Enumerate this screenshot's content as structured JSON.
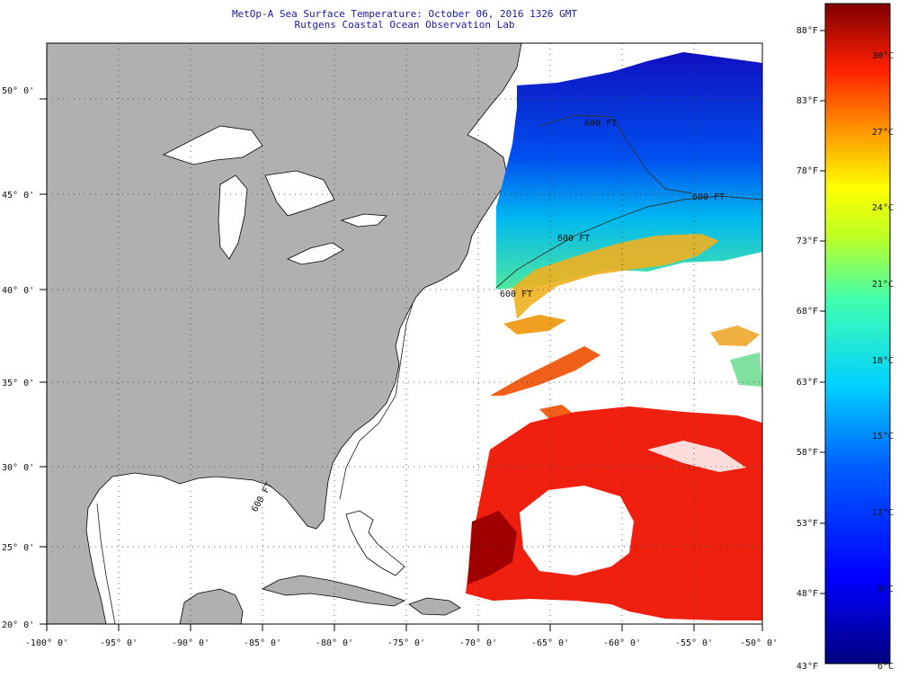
{
  "header": {
    "title": "MetOp-A Sea Surface Temperature:  October 06, 2016 1326 GMT",
    "subtitle": "Rutgens Coastal Ocean Observation Lab"
  },
  "map": {
    "lon_labels": [
      "-100° 0'",
      "-95° 0'",
      "-90° 0'",
      "-85° 0'",
      "-80° 0'",
      "-75° 0'",
      "-70° 0'",
      "-65° 0'",
      "-60° 0'",
      "-55° 0'",
      "-50° 0'"
    ],
    "lat_labels": [
      "50° 0'",
      "45° 0'",
      "40° 0'",
      "35° 0'",
      "30° 0'",
      "25° 0'",
      "20° 0'"
    ],
    "isobath_labels": [
      "600 FT",
      "600 FT",
      "600 FT",
      "600 FT",
      "600 FT"
    ],
    "colors": {
      "land": "#b0b0b0",
      "ocean": "#ffffff",
      "grid": "#444444"
    }
  },
  "colorbar": {
    "fahrenheit": [
      "88°F",
      "83°F",
      "78°F",
      "73°F",
      "68°F",
      "63°F",
      "58°F",
      "53°F",
      "48°F",
      "43°F"
    ],
    "celsius": [
      "30°C",
      "27°C",
      "24°C",
      "21°C",
      "18°C",
      "15°C",
      "12°C",
      "9°C",
      "6°C"
    ],
    "range_c": [
      6,
      31
    ]
  }
}
